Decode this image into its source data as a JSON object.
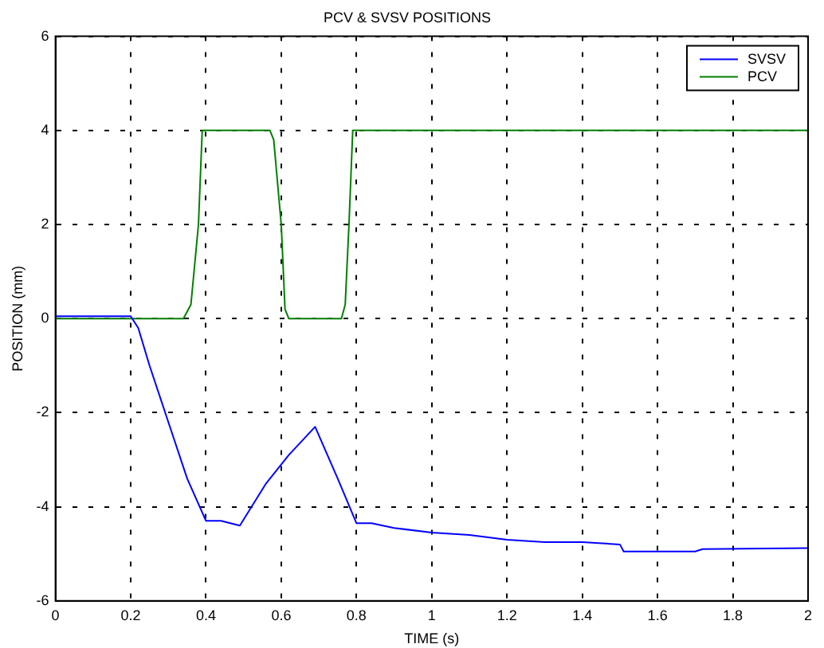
{
  "chart_data": {
    "type": "line",
    "title": "PCV & SVSV POSITIONS",
    "xlabel": "TIME (s)",
    "ylabel": "POSITION (mm)",
    "xlim": [
      0,
      2
    ],
    "xticks": [
      0,
      0.2,
      0.4,
      0.6,
      0.8,
      1,
      1.2,
      1.4,
      1.6,
      1.8,
      2
    ],
    "ylim": [
      -6,
      6
    ],
    "yticks": [
      -6,
      -4,
      -2,
      0,
      2,
      4,
      6
    ],
    "grid": true,
    "legend": "top right",
    "marker": "none",
    "line_style": "solid",
    "series": [
      {
        "name": "SVSV",
        "color": "#0000ff",
        "x": [
          0,
          0.2,
          0.22,
          0.25,
          0.3,
          0.35,
          0.4,
          0.44,
          0.49,
          0.56,
          0.62,
          0.69,
          0.75,
          0.8,
          0.84,
          0.9,
          1.0,
          1.1,
          1.2,
          1.3,
          1.4,
          1.5,
          1.51,
          1.7,
          1.72,
          2
        ],
        "values": [
          0.05,
          0.05,
          -0.2,
          -1,
          -2.2,
          -3.4,
          -4.3,
          -4.3,
          -4.4,
          -3.5,
          -2.9,
          -2.3,
          -3.4,
          -4.35,
          -4.35,
          -4.45,
          -4.55,
          -4.6,
          -4.7,
          -4.75,
          -4.75,
          -4.8,
          -4.95,
          -4.95,
          -4.9,
          -4.88
        ]
      },
      {
        "name": "PCV",
        "color": "#008000",
        "x": [
          0,
          0.34,
          0.36,
          0.38,
          0.39,
          0.57,
          0.58,
          0.6,
          0.61,
          0.62,
          0.76,
          0.77,
          0.78,
          0.79,
          2
        ],
        "values": [
          0,
          0,
          0.3,
          2,
          4,
          4,
          3.8,
          2,
          0.2,
          0,
          0,
          0.3,
          2,
          4,
          4
        ]
      }
    ]
  }
}
